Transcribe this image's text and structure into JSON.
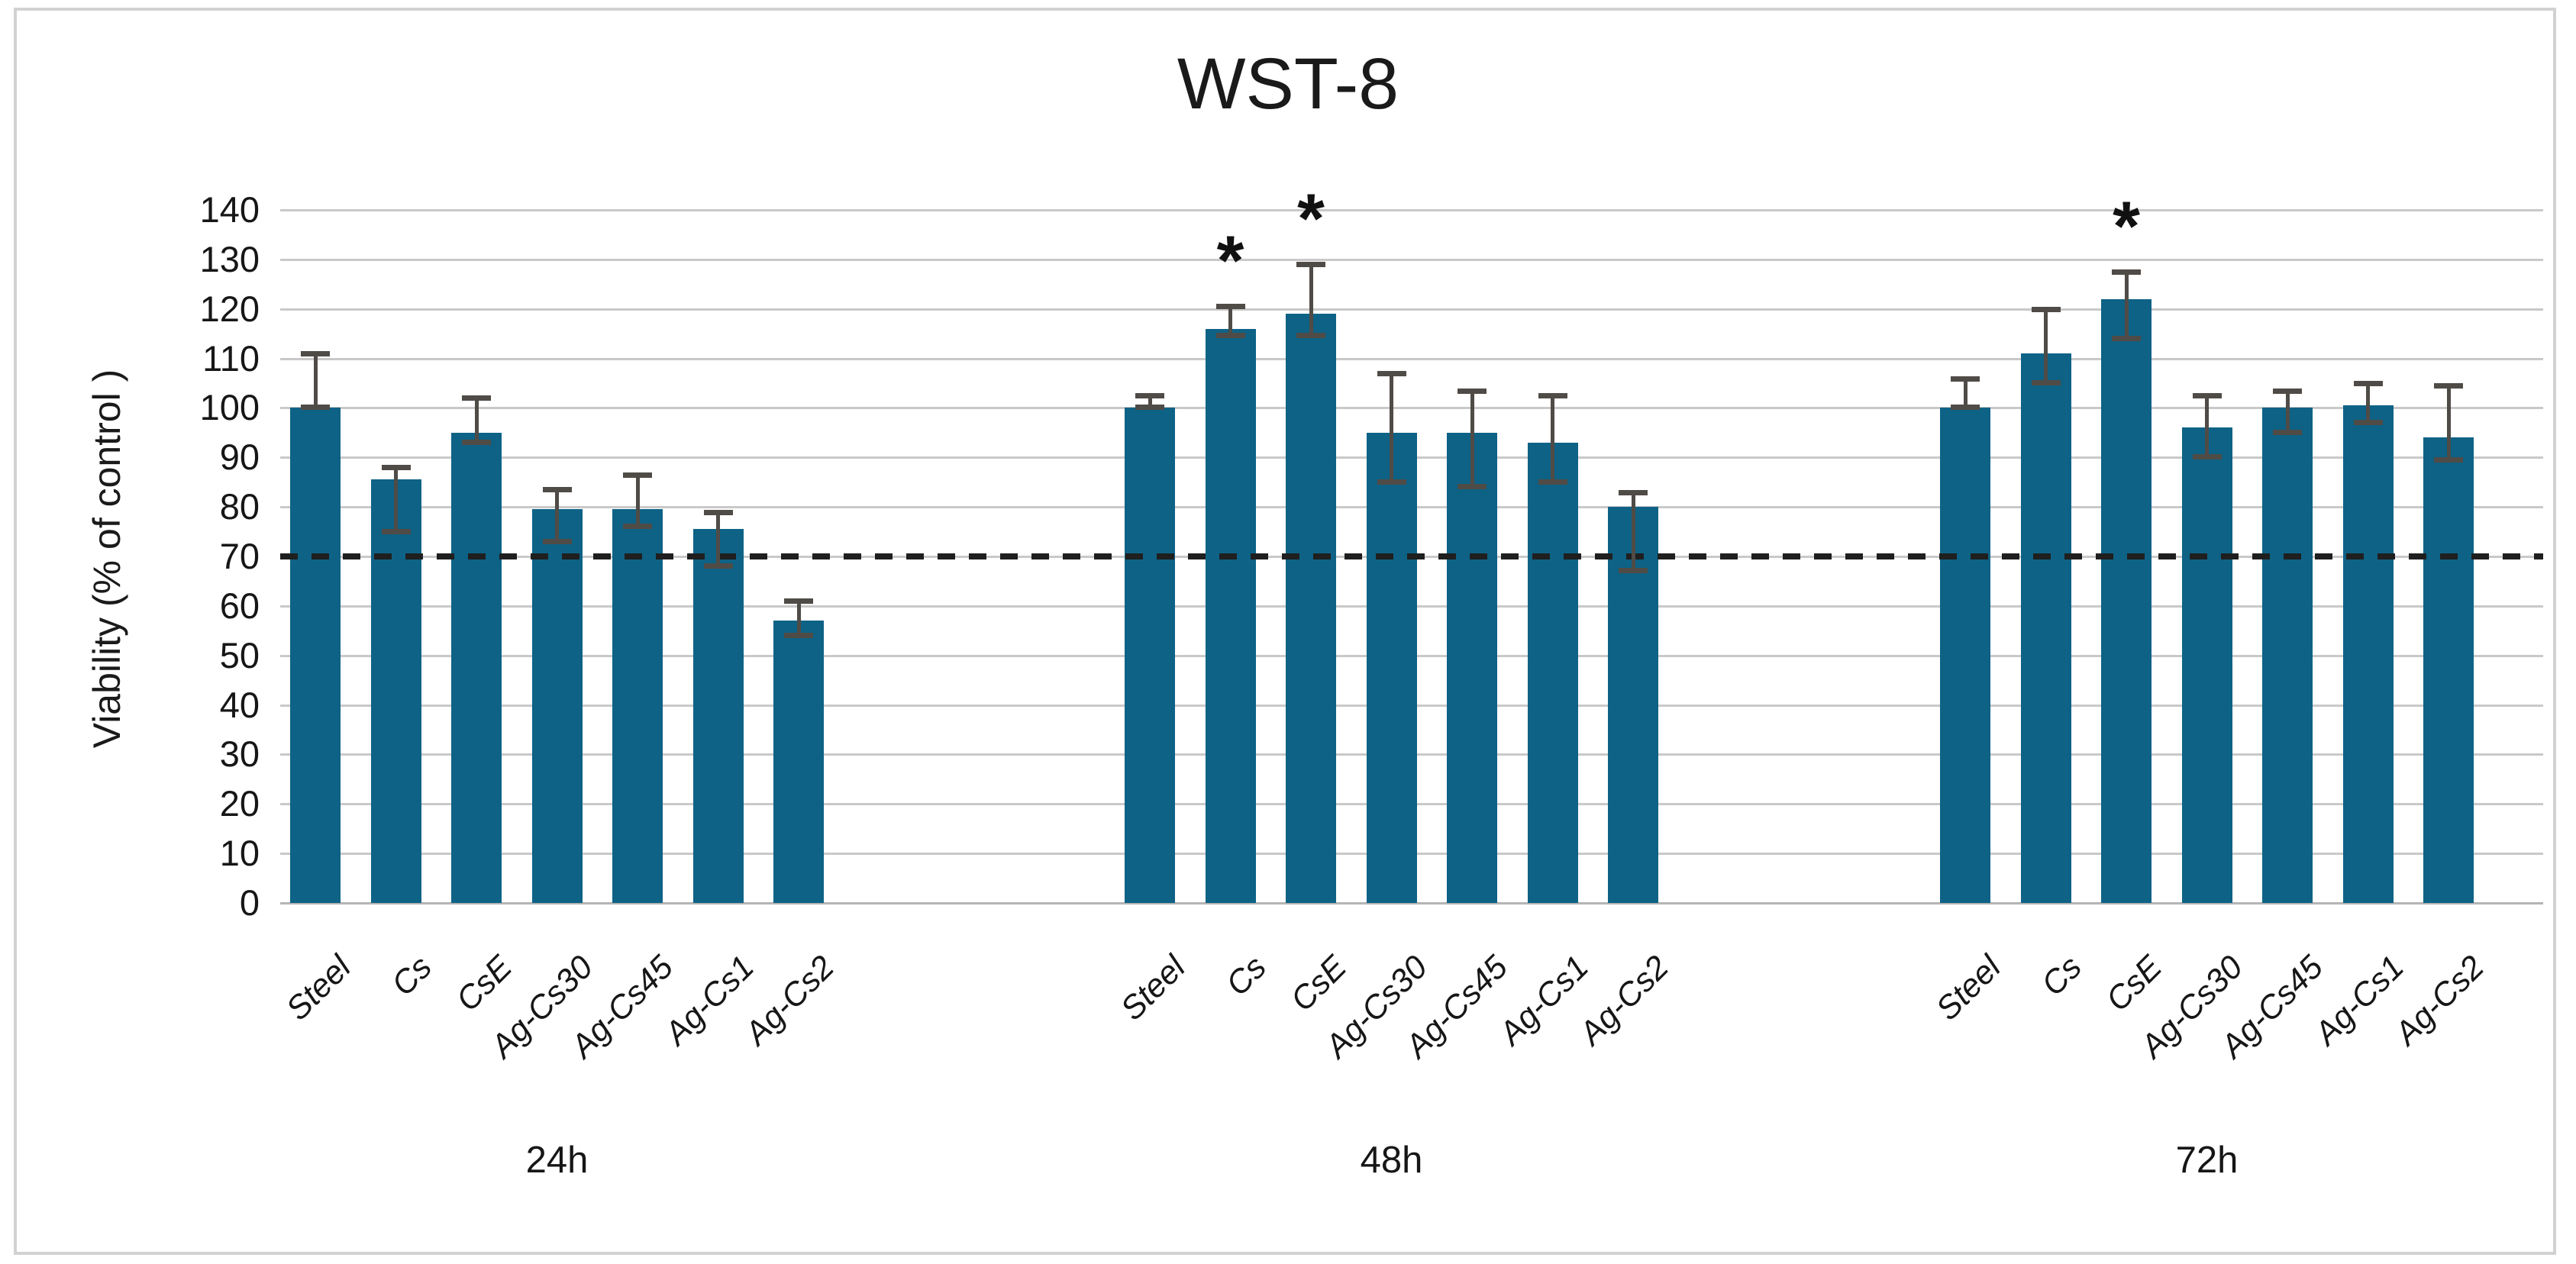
{
  "chart_data": {
    "type": "bar",
    "title": "WST-8",
    "ylabel": "Viability (% of control )",
    "ylim": [
      0,
      140
    ],
    "ytick_step": 10,
    "grid": true,
    "legend": null,
    "significance_marker": "*",
    "threshold_line": {
      "value": 70,
      "style": "dashed"
    },
    "colors": {
      "bar": "#0E6286",
      "error_bar": "#4F4B46",
      "gridline": "#C9C9C9",
      "axis_line": "#B5B5B5",
      "threshold": "#1F1F1F",
      "text": "#1A1A1A",
      "frame_border": "#D2D2D2",
      "background": "#FFFFFF"
    },
    "groups": [
      {
        "label": "24h",
        "categories": [
          "Steel",
          "Cs",
          "CsE",
          "Ag-Cs30",
          "Ag-Cs45",
          "Ag-Cs1",
          "Ag-Cs2"
        ],
        "values": [
          100,
          85.5,
          95,
          79.5,
          79.5,
          75.5,
          57
        ],
        "err_low": [
          100,
          75,
          93,
          73,
          76,
          68,
          54
        ],
        "err_high": [
          111,
          88,
          102,
          83.5,
          86.5,
          79,
          61
        ],
        "significant": [
          false,
          false,
          false,
          false,
          false,
          false,
          false
        ]
      },
      {
        "label": "48h",
        "categories": [
          "Steel",
          "Cs",
          "CsE",
          "Ag-Cs30",
          "Ag-Cs45",
          "Ag-Cs1",
          "Ag-Cs2"
        ],
        "values": [
          100,
          116,
          119,
          95,
          95,
          93,
          80
        ],
        "err_low": [
          100,
          114.5,
          114.5,
          85,
          84,
          85,
          67
        ],
        "err_high": [
          102.5,
          120.5,
          129,
          107,
          103.5,
          102.5,
          83
        ],
        "significant": [
          false,
          true,
          true,
          false,
          false,
          false,
          false
        ]
      },
      {
        "label": "72h",
        "categories": [
          "Steel",
          "Cs",
          "CsE",
          "Ag-Cs30",
          "Ag-Cs45",
          "Ag-Cs1",
          "Ag-Cs2"
        ],
        "values": [
          100,
          111,
          122,
          96,
          100,
          100.5,
          94
        ],
        "err_low": [
          100,
          105,
          114,
          90,
          95,
          97,
          89.5
        ],
        "err_high": [
          106,
          120,
          127.5,
          102.5,
          103.5,
          105,
          104.5
        ],
        "significant": [
          false,
          false,
          true,
          false,
          false,
          false,
          false
        ]
      }
    ]
  }
}
